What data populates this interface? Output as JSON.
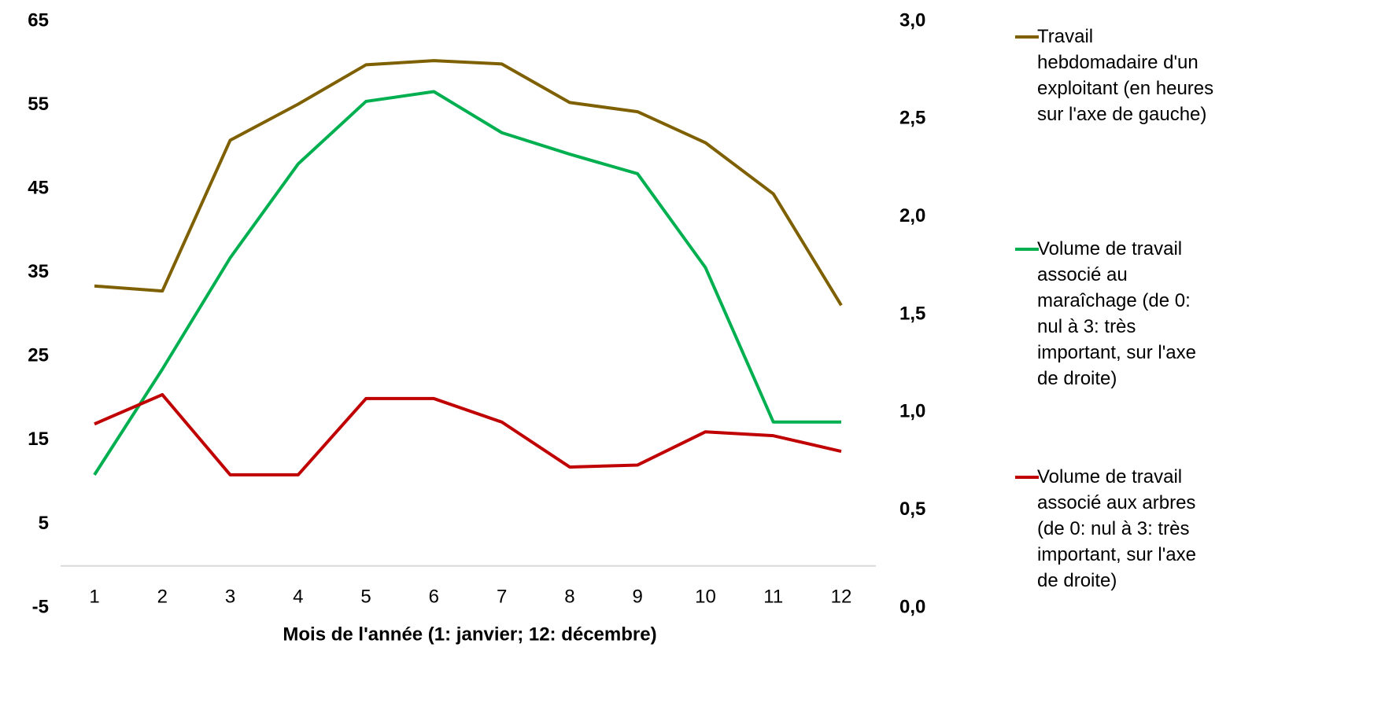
{
  "chart_data": {
    "type": "line",
    "x_label": "Mois de l'année (1: janvier; 12: décembre)",
    "categories": [
      "1",
      "2",
      "3",
      "4",
      "5",
      "6",
      "7",
      "8",
      "9",
      "10",
      "11",
      "12"
    ],
    "ylim": [
      -5,
      65
    ],
    "yticks": [
      -5,
      5,
      15,
      25,
      35,
      45,
      55,
      65
    ],
    "y2lim": [
      0,
      3
    ],
    "y2ticks": [
      {
        "value": 0,
        "label": "0,0"
      },
      {
        "value": 0.5,
        "label": "0,5"
      },
      {
        "value": 1,
        "label": "1,0"
      },
      {
        "value": 1.5,
        "label": "1,5"
      },
      {
        "value": 2,
        "label": "2,0"
      },
      {
        "value": 2.5,
        "label": "2,5"
      },
      {
        "value": 3,
        "label": "3,0"
      }
    ],
    "legend": "right",
    "series": [
      {
        "name": "Travail hebdomadaire d'un exploitant (en heures sur l'axe de gauche)",
        "color": "#7f6000",
        "axis": "y",
        "values": [
          33.4,
          32.8,
          50.8,
          55.1,
          59.8,
          60.3,
          59.9,
          55.3,
          54.2,
          50.5,
          44.4,
          31.1
        ]
      },
      {
        "name": "Volume de travail associé au maraîchage (de 0: nul à 3: très important, sur l'axe de droite)",
        "color": "#00b050",
        "axis": "y2",
        "values": [
          0.68,
          1.22,
          1.79,
          2.27,
          2.59,
          2.64,
          2.43,
          2.32,
          2.22,
          1.74,
          0.95,
          0.95
        ]
      },
      {
        "name": "Volume de travail associé aux arbres (de 0: nul à 3: très important, sur l'axe de droite)",
        "color": "#c00000",
        "axis": "y2",
        "values": [
          0.94,
          1.09,
          0.68,
          0.68,
          1.07,
          1.07,
          0.95,
          0.72,
          0.73,
          0.9,
          0.88,
          0.8
        ]
      }
    ]
  }
}
